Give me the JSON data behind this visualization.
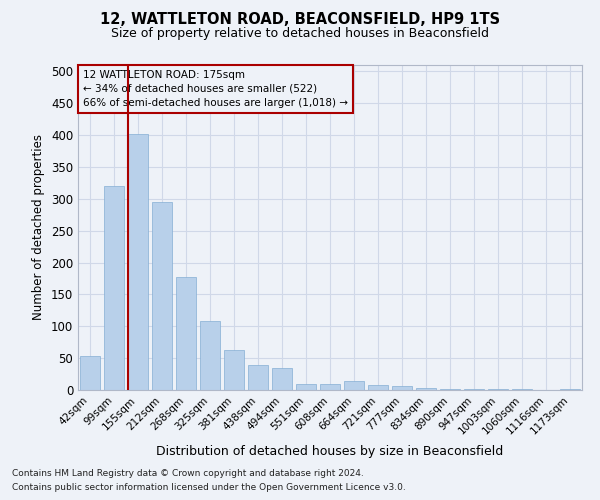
{
  "title": "12, WATTLETON ROAD, BEACONSFIELD, HP9 1TS",
  "subtitle": "Size of property relative to detached houses in Beaconsfield",
  "xlabel": "Distribution of detached houses by size in Beaconsfield",
  "ylabel": "Number of detached properties",
  "categories": [
    "42sqm",
    "99sqm",
    "155sqm",
    "212sqm",
    "268sqm",
    "325sqm",
    "381sqm",
    "438sqm",
    "494sqm",
    "551sqm",
    "608sqm",
    "664sqm",
    "721sqm",
    "777sqm",
    "834sqm",
    "890sqm",
    "947sqm",
    "1003sqm",
    "1060sqm",
    "1116sqm",
    "1173sqm"
  ],
  "values": [
    53,
    320,
    402,
    295,
    177,
    108,
    63,
    40,
    35,
    10,
    10,
    14,
    8,
    6,
    3,
    2,
    1,
    1,
    1,
    0,
    2
  ],
  "bar_color": "#b8d0ea",
  "bar_edge_color": "#85afd4",
  "grid_color": "#d0d8e8",
  "background_color": "#eef2f8",
  "vline_color": "#aa0000",
  "annotation_text": "12 WATTLETON ROAD: 175sqm\n← 34% of detached houses are smaller (522)\n66% of semi-detached houses are larger (1,018) →",
  "annotation_box_color": "#eef2f8",
  "annotation_box_edge": "#aa0000",
  "footnote1": "Contains HM Land Registry data © Crown copyright and database right 2024.",
  "footnote2": "Contains public sector information licensed under the Open Government Licence v3.0.",
  "ylim": [
    0,
    510
  ],
  "yticks": [
    0,
    50,
    100,
    150,
    200,
    250,
    300,
    350,
    400,
    450,
    500
  ]
}
